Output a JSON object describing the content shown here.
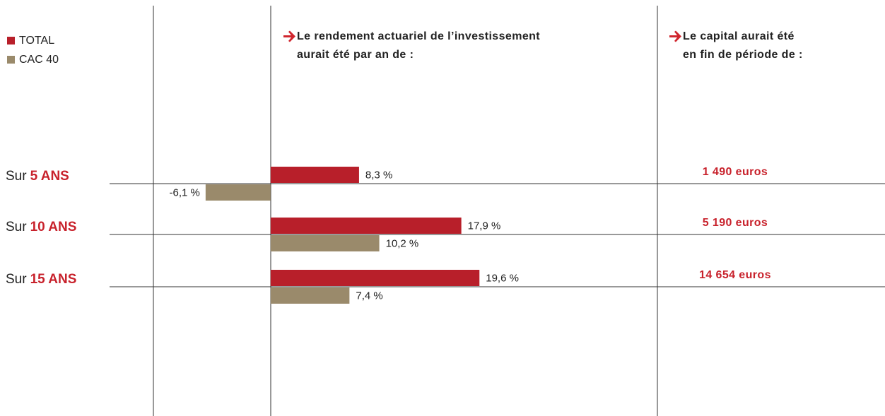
{
  "chart_data": {
    "type": "bar",
    "orientation": "horizontal",
    "categories": [
      "5 ANS",
      "10 ANS",
      "15 ANS"
    ],
    "category_prefix": [
      "Sur",
      "Sur",
      "Sur"
    ],
    "series": [
      {
        "name": "TOTAL",
        "color": "#b81f2a",
        "values": [
          8.3,
          17.9,
          19.6
        ],
        "value_labels": [
          "8,3 %",
          "17,9 %",
          "19,6 %"
        ]
      },
      {
        "name": "CAC 40",
        "color": "#9a8a6b",
        "values": [
          -6.1,
          10.2,
          7.4
        ],
        "value_labels": [
          "-6,1 %",
          "10,2 %",
          "7,4 %"
        ]
      }
    ],
    "xlim": [
      -11,
      36.3
    ],
    "column_headers": [
      [
        "Le rendement actuariel de l’investissement",
        "aurait été par an de :"
      ],
      [
        "Le capital aurait été",
        "en fin de période de :"
      ]
    ],
    "capital_labels": [
      "1 490 euros",
      "5 190 euros",
      "14 654 euros"
    ],
    "legend": "top-left"
  }
}
